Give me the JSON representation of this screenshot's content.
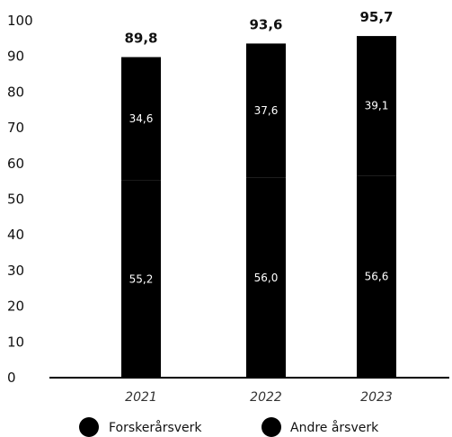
{
  "chart_data": {
    "type": "bar",
    "stacked": true,
    "categories": [
      "2021",
      "2022",
      "2023"
    ],
    "series": [
      {
        "name": "Forskerårsverk",
        "values": [
          "55,2",
          "56,0",
          "56,6"
        ],
        "color": "#000000"
      },
      {
        "name": "Andre årsverk",
        "values": [
          "34,6",
          "37,6",
          "39,1"
        ],
        "color": "#000000"
      }
    ],
    "totals": [
      "89,8",
      "93,6",
      "95,7"
    ],
    "y_ticks": [
      "0",
      "10",
      "20",
      "30",
      "40",
      "50",
      "60",
      "70",
      "80",
      "90",
      "100"
    ],
    "ylim": [
      0,
      100
    ],
    "grid": false,
    "legend_position": "bottom"
  }
}
